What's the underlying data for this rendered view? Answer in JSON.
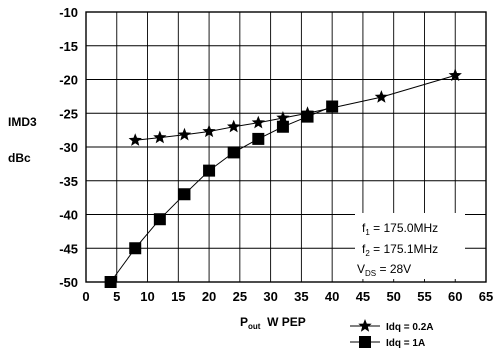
{
  "chart_data": {
    "type": "line",
    "ylabel_line1": "IMD3",
    "ylabel_line2": "dBc",
    "xlabel": {
      "main": "P",
      "sub": "out",
      "rest": "  W PEP"
    },
    "xlim": [
      0,
      65
    ],
    "ylim": [
      -50,
      -10
    ],
    "x_ticks": [
      0,
      5,
      10,
      15,
      20,
      25,
      30,
      35,
      40,
      45,
      50,
      55,
      60,
      65
    ],
    "y_ticks": [
      -10,
      -15,
      -20,
      -25,
      -30,
      -35,
      -40,
      -45,
      -50
    ],
    "grid": true,
    "series": [
      {
        "name": "Idq = 0.2A",
        "marker": "star",
        "x": [
          8,
          12,
          16,
          20,
          24,
          28,
          32,
          36,
          48,
          60
        ],
        "y": [
          -29,
          -28.6,
          -28.2,
          -27.7,
          -27,
          -26.4,
          -25.7,
          -25,
          -22.6,
          -19.4
        ]
      },
      {
        "name": "Idq = 1A",
        "marker": "square",
        "x": [
          4,
          8,
          12,
          16,
          20,
          24,
          28,
          32,
          36,
          40
        ],
        "y": [
          -50,
          -45,
          -40.7,
          -37,
          -33.5,
          -30.8,
          -28.8,
          -27,
          -25.5,
          -24
        ]
      }
    ],
    "annotations": {
      "f1": {
        "main": "f",
        "sub": "1",
        "rest": " = 175.0MHz"
      },
      "f2": {
        "main": "f",
        "sub": "2",
        "rest": " = 175.1MHz"
      },
      "vds": {
        "main": "V",
        "sub": "DS",
        "rest": " = 28V"
      }
    },
    "legend": {
      "placement": "bottom-right"
    }
  }
}
